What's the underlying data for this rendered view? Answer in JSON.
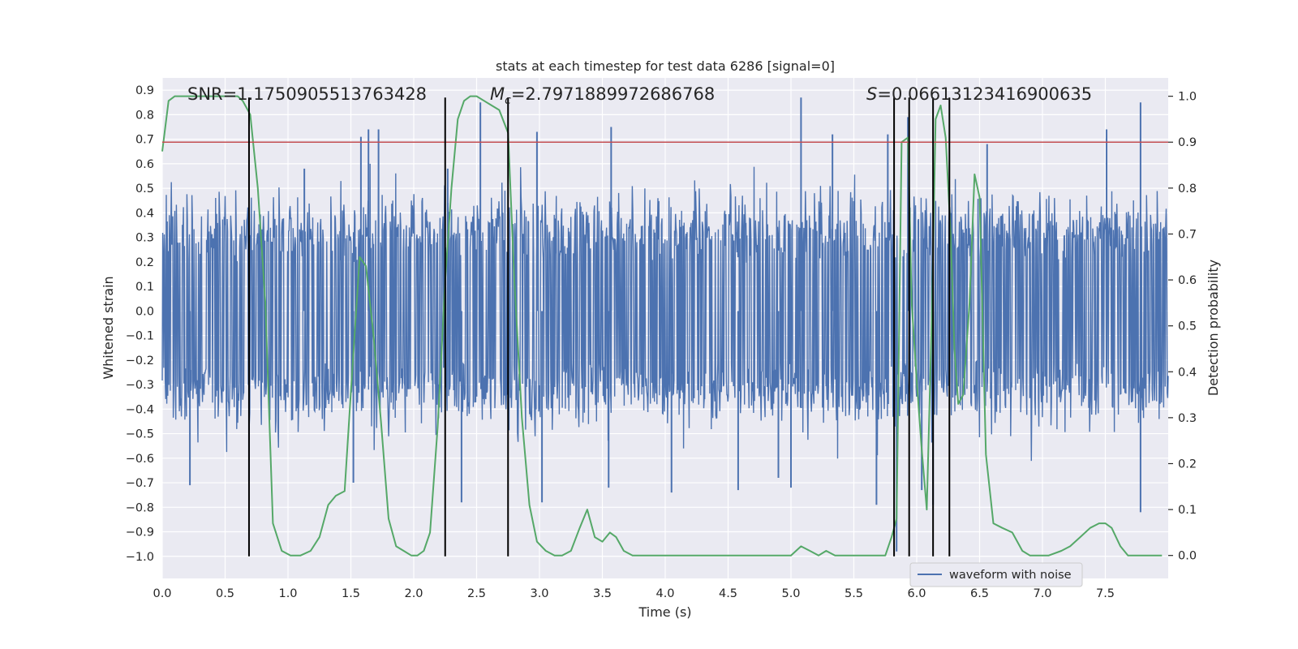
{
  "chart_data": {
    "type": "line",
    "title": "stats at each timestep for test data 6286 [signal=0]",
    "xlabel": "Time (s)",
    "ylabel_left": "Whitened strain",
    "ylabel_right": "Detection probability",
    "xlim": [
      0.0,
      8.0
    ],
    "ylim_left": [
      -1.09,
      0.95
    ],
    "ylim_right": [
      -0.05,
      1.04
    ],
    "x_ticks": [
      0.0,
      0.5,
      1.0,
      1.5,
      2.0,
      2.5,
      3.0,
      3.5,
      4.0,
      4.5,
      5.0,
      5.5,
      6.0,
      6.5,
      7.0,
      7.5
    ],
    "y_ticks_left": [
      -1.0,
      -0.9,
      -0.8,
      -0.7,
      -0.6,
      -0.5,
      -0.4,
      -0.3,
      -0.2,
      -0.1,
      0.0,
      0.1,
      0.2,
      0.3,
      0.4,
      0.5,
      0.6,
      0.7,
      0.8,
      0.9
    ],
    "y_ticks_right": [
      0.0,
      0.1,
      0.2,
      0.3,
      0.4,
      0.5,
      0.6,
      0.7,
      0.8,
      0.9,
      1.0
    ],
    "stats": {
      "snr": "SNR=1.1750905513763428",
      "mc_symbol": "M",
      "mc_subscript": "c",
      "mc_value": "=2.7971889972686768",
      "s_symbol": "S",
      "s_value": "=0.06613123416900635"
    },
    "threshold": {
      "value_right": 0.9,
      "color": "#c44e52"
    },
    "event_lines_x": [
      0.69,
      2.25,
      2.75,
      5.82,
      5.94,
      6.13,
      6.26
    ],
    "event_line_range_left": [
      -1.0,
      0.87
    ],
    "waveform": {
      "name": "waveform with noise",
      "color": "#4c72b0",
      "core_amplitude": 0.32,
      "typical_amplitude": 0.5,
      "spikes": [
        {
          "x": 0.22,
          "y": -0.71
        },
        {
          "x": 0.69,
          "y": -0.69
        },
        {
          "x": 1.13,
          "y": 0.58
        },
        {
          "x": 1.58,
          "y": 0.71
        },
        {
          "x": 1.64,
          "y": 0.74
        },
        {
          "x": 1.72,
          "y": 0.74
        },
        {
          "x": 2.27,
          "y": 0.58
        },
        {
          "x": 2.38,
          "y": -0.78
        },
        {
          "x": 2.53,
          "y": 0.85
        },
        {
          "x": 2.98,
          "y": 0.73
        },
        {
          "x": 3.02,
          "y": -0.78
        },
        {
          "x": 3.57,
          "y": 0.75
        },
        {
          "x": 3.55,
          "y": -0.72
        },
        {
          "x": 4.05,
          "y": -0.74
        },
        {
          "x": 4.58,
          "y": -0.73
        },
        {
          "x": 5.08,
          "y": 0.87
        },
        {
          "x": 5.0,
          "y": -0.72
        },
        {
          "x": 5.33,
          "y": 0.72
        },
        {
          "x": 5.68,
          "y": -0.79
        },
        {
          "x": 5.77,
          "y": 0.72
        },
        {
          "x": 5.84,
          "y": -0.98
        },
        {
          "x": 5.93,
          "y": 0.79
        },
        {
          "x": 6.04,
          "y": -0.73
        },
        {
          "x": 6.13,
          "y": -0.79
        },
        {
          "x": 6.56,
          "y": 0.68
        },
        {
          "x": 7.51,
          "y": 0.74
        },
        {
          "x": 7.78,
          "y": 0.85
        },
        {
          "x": 7.78,
          "y": -0.82
        },
        {
          "x": 1.52,
          "y": -0.7
        },
        {
          "x": 4.9,
          "y": -0.68
        }
      ]
    },
    "detection_probability": {
      "color": "#55a868",
      "x": [
        0.0,
        0.05,
        0.1,
        0.2,
        0.3,
        0.4,
        0.5,
        0.6,
        0.64,
        0.7,
        0.76,
        0.82,
        0.88,
        0.95,
        1.02,
        1.1,
        1.18,
        1.25,
        1.32,
        1.38,
        1.45,
        1.51,
        1.57,
        1.62,
        1.68,
        1.74,
        1.8,
        1.86,
        1.92,
        1.98,
        2.03,
        2.08,
        2.13,
        2.19,
        2.25,
        2.3,
        2.35,
        2.4,
        2.45,
        2.5,
        2.56,
        2.62,
        2.68,
        2.75,
        2.8,
        2.86,
        2.92,
        2.98,
        3.05,
        3.12,
        3.18,
        3.25,
        3.32,
        3.38,
        3.44,
        3.5,
        3.56,
        3.61,
        3.67,
        3.74,
        3.82,
        3.9,
        4.0,
        4.1,
        4.2,
        4.3,
        4.4,
        4.5,
        4.6,
        4.7,
        4.8,
        4.9,
        5.0,
        5.08,
        5.15,
        5.22,
        5.28,
        5.35,
        5.45,
        5.55,
        5.65,
        5.75,
        5.8,
        5.84,
        5.88,
        5.93,
        5.96,
        6.0,
        6.04,
        6.08,
        6.12,
        6.15,
        6.19,
        6.23,
        6.27,
        6.3,
        6.33,
        6.37,
        6.42,
        6.46,
        6.5,
        6.55,
        6.61,
        6.68,
        6.76,
        6.84,
        6.9,
        6.95,
        7.05,
        7.15,
        7.22,
        7.3,
        7.38,
        7.45,
        7.5,
        7.55,
        7.62,
        7.68,
        7.75,
        7.85,
        7.95
      ],
      "y": [
        0.88,
        0.99,
        1.0,
        1.0,
        1.0,
        1.0,
        1.0,
        1.0,
        0.99,
        0.96,
        0.8,
        0.55,
        0.07,
        0.01,
        0.0,
        0.0,
        0.01,
        0.04,
        0.11,
        0.13,
        0.14,
        0.4,
        0.65,
        0.63,
        0.48,
        0.29,
        0.08,
        0.02,
        0.01,
        0.0,
        0.0,
        0.01,
        0.05,
        0.28,
        0.6,
        0.8,
        0.95,
        0.99,
        1.0,
        1.0,
        0.99,
        0.98,
        0.97,
        0.92,
        0.6,
        0.3,
        0.11,
        0.03,
        0.01,
        0.0,
        0.0,
        0.01,
        0.06,
        0.1,
        0.04,
        0.03,
        0.05,
        0.04,
        0.01,
        0.0,
        0.0,
        0.0,
        0.0,
        0.0,
        0.0,
        0.0,
        0.0,
        0.0,
        0.0,
        0.0,
        0.0,
        0.0,
        0.0,
        0.02,
        0.01,
        0.0,
        0.01,
        0.0,
        0.0,
        0.0,
        0.0,
        0.0,
        0.04,
        0.08,
        0.9,
        0.91,
        0.55,
        0.38,
        0.23,
        0.1,
        0.52,
        0.95,
        0.98,
        0.91,
        0.7,
        0.45,
        0.33,
        0.35,
        0.55,
        0.83,
        0.78,
        0.22,
        0.07,
        0.06,
        0.05,
        0.01,
        0.0,
        0.0,
        0.0,
        0.01,
        0.02,
        0.04,
        0.06,
        0.07,
        0.07,
        0.06,
        0.02,
        0.0,
        0.0,
        0.0,
        0.0
      ]
    },
    "legend": {
      "entries": [
        "waveform with noise"
      ],
      "position": "lower-center-right"
    },
    "style": {
      "background": "#eaeaf2",
      "grid": "#ffffff",
      "text": "#262626",
      "event_line": "#000000"
    }
  }
}
